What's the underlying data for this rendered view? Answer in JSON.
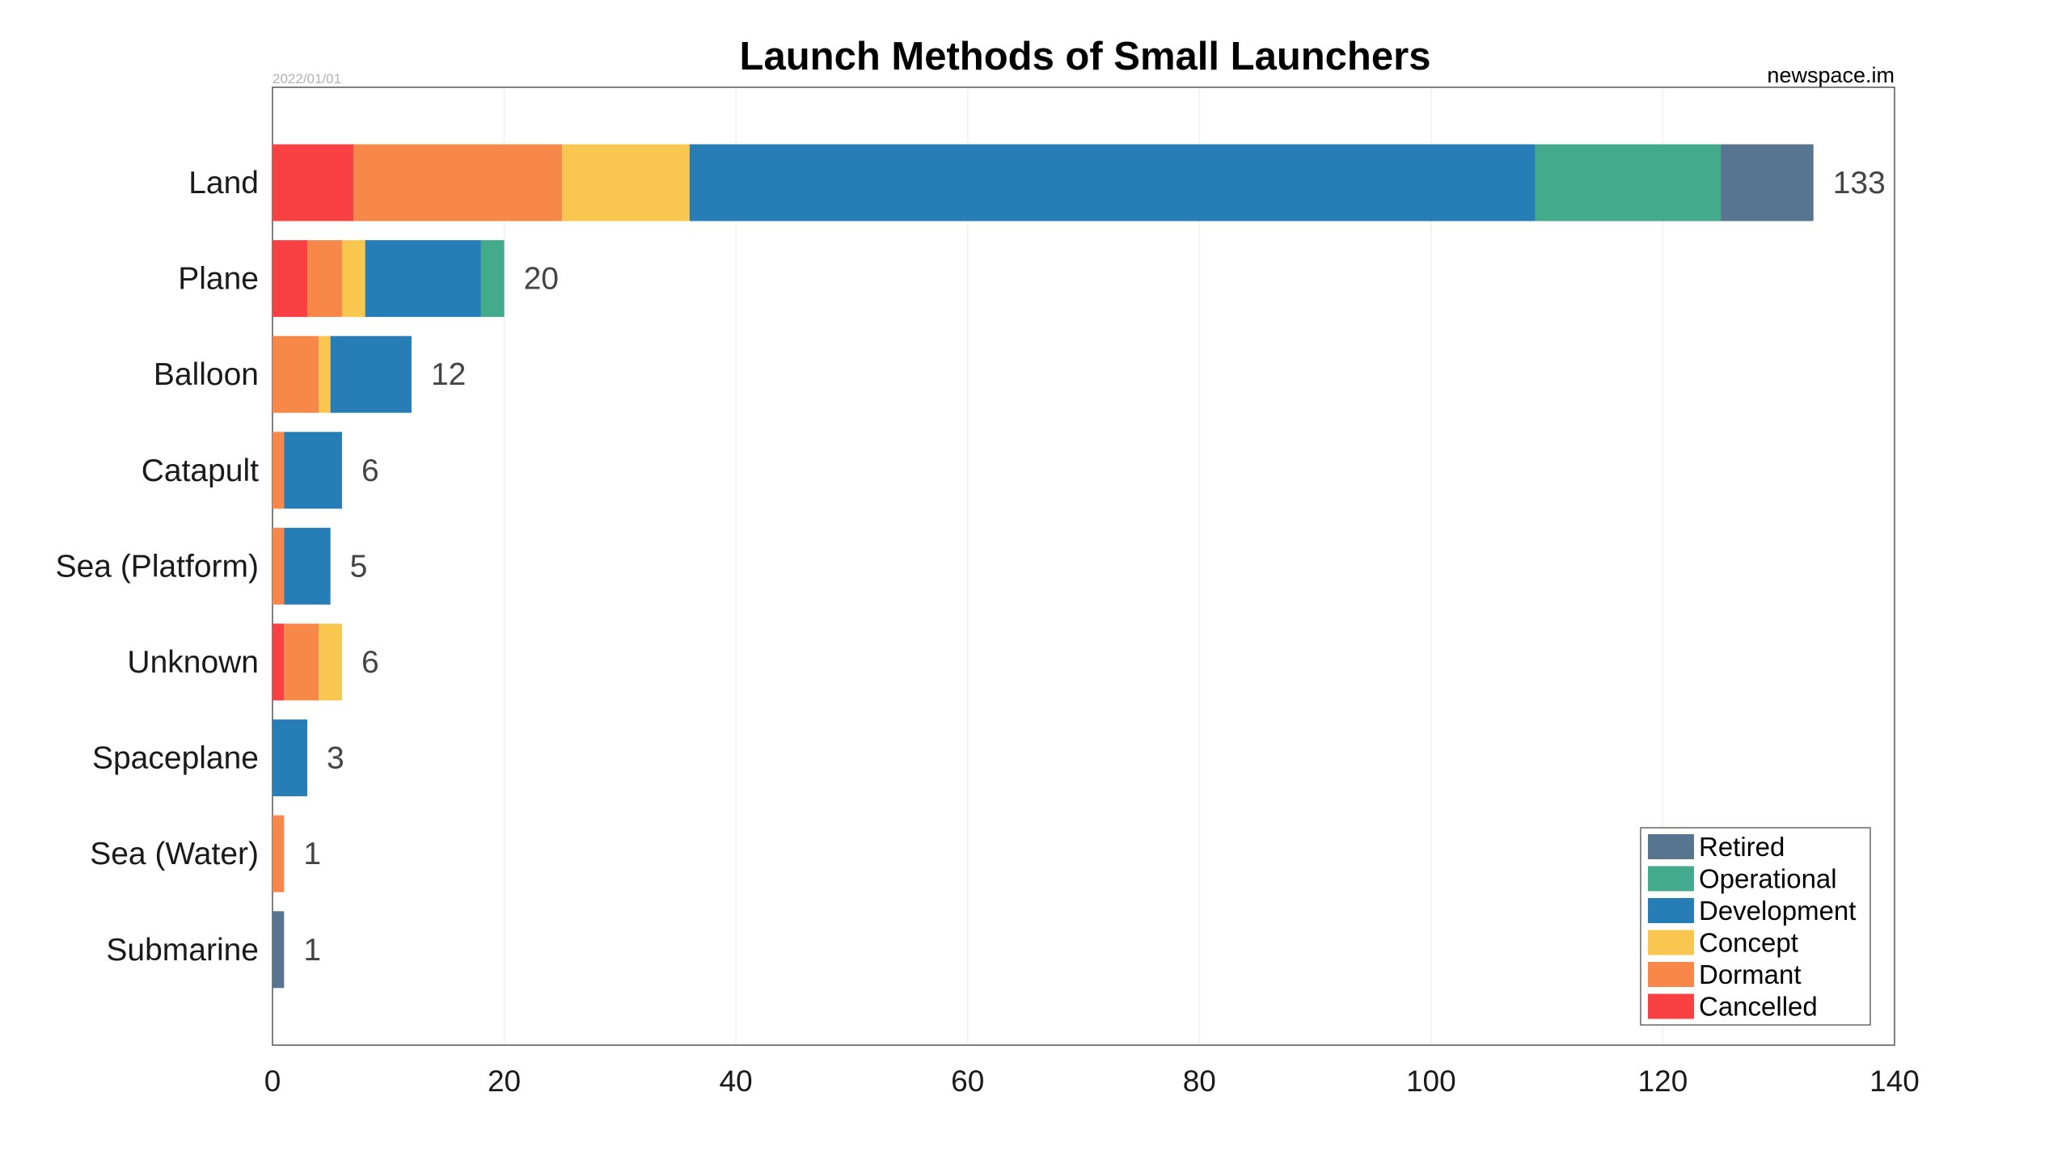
{
  "chart_data": {
    "type": "bar",
    "orientation": "horizontal",
    "stacked": true,
    "title": "Launch Methods of Small Launchers",
    "source": "newspace.im",
    "date": "2022/01/01",
    "xlim": [
      0,
      140
    ],
    "xticks": [
      0,
      20,
      40,
      60,
      80,
      100,
      120,
      140
    ],
    "grid": true,
    "legend_position": "bottom-right",
    "categories": [
      "Land",
      "Plane",
      "Balloon",
      "Catapult",
      "Sea (Platform)",
      "Unknown",
      "Spaceplane",
      "Sea (Water)",
      "Submarine"
    ],
    "totals": [
      133,
      20,
      12,
      6,
      5,
      6,
      3,
      1,
      1
    ],
    "series": [
      {
        "name": "Cancelled",
        "color": "#f94144",
        "values": [
          7,
          3,
          0,
          0,
          0,
          1,
          0,
          0,
          0
        ]
      },
      {
        "name": "Dormant",
        "color": "#f8874a",
        "values": [
          18,
          3,
          4,
          1,
          1,
          3,
          0,
          1,
          0
        ]
      },
      {
        "name": "Concept",
        "color": "#f9c74f",
        "values": [
          11,
          2,
          1,
          0,
          0,
          2,
          0,
          0,
          0
        ]
      },
      {
        "name": "Development",
        "color": "#277db6",
        "values": [
          73,
          10,
          7,
          5,
          4,
          0,
          3,
          0,
          0
        ]
      },
      {
        "name": "Operational",
        "color": "#43aa8b",
        "values": [
          16,
          2,
          0,
          0,
          0,
          0,
          0,
          0,
          0
        ]
      },
      {
        "name": "Retired",
        "color": "#577590",
        "values": [
          8,
          0,
          0,
          0,
          0,
          0,
          0,
          0,
          1
        ]
      }
    ],
    "legend_order": [
      "Retired",
      "Operational",
      "Development",
      "Concept",
      "Dormant",
      "Cancelled"
    ]
  }
}
